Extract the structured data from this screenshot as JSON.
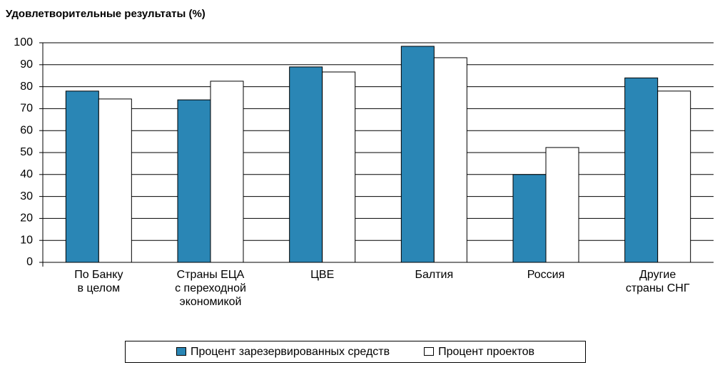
{
  "chart_data": {
    "type": "bar",
    "title": "Удовлетворительные результаты (%)",
    "categories": [
      "По Банку\nв целом",
      "Страны ЕЦА\nс переходной\nэкономикой",
      "ЦВЕ",
      "Балтия",
      "Россия",
      "Другие\nстраны СНГ"
    ],
    "series": [
      {
        "name": "Процент зарезервированных средств",
        "color": "#2a86b5",
        "values": [
          78,
          74,
          89,
          98.4,
          40,
          84
        ]
      },
      {
        "name": "Процент проектов",
        "color": "#ffffff",
        "values": [
          74.4,
          82.5,
          86.7,
          93.2,
          52.3,
          78
        ]
      }
    ],
    "ylim": [
      0,
      100
    ],
    "yticks": [
      0,
      10,
      20,
      30,
      40,
      50,
      60,
      70,
      80,
      90,
      100
    ],
    "grid": true,
    "legend": "bottom"
  }
}
